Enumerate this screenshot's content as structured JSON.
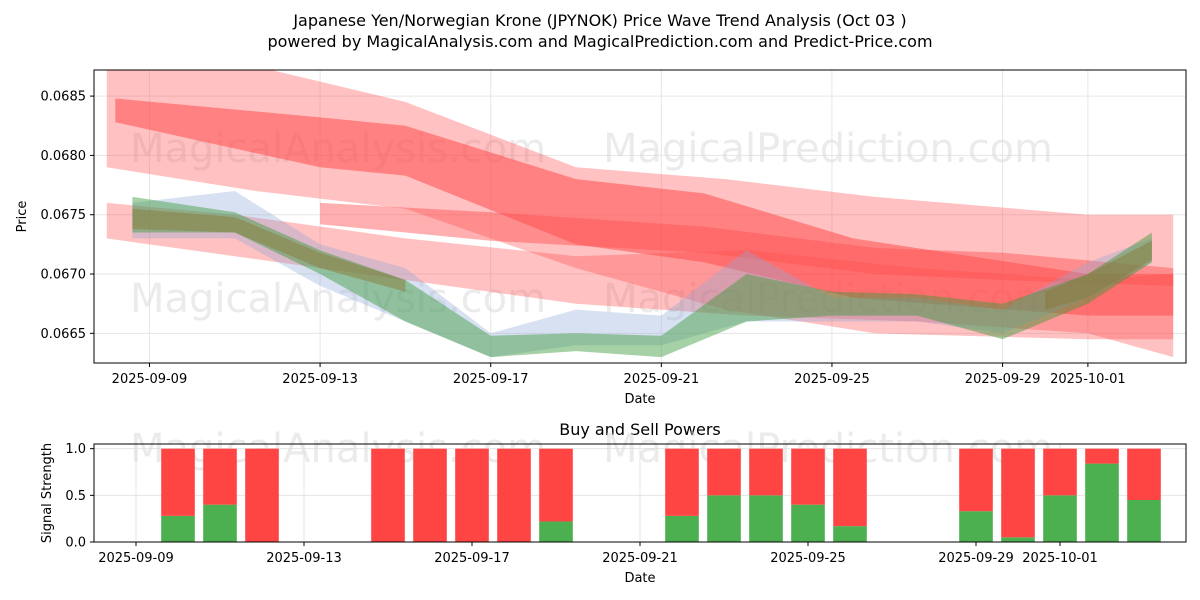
{
  "header": {
    "title": "Japanese Yen/Norwegian Krone (JPYNOK) Price Wave Trend Analysis (Oct 03 )",
    "subtitle": "powered by MagicalAnalysis.com and MagicalPrediction.com and Predict-Price.com"
  },
  "watermarks": [
    "MagicalAnalysis.com",
    "MagicalPrediction.com"
  ],
  "colors": {
    "red_band": "#ff4d4d",
    "green_band": "#3a9a3a",
    "blue_band": "#8fa8d8",
    "buy": "#4caf50",
    "sell": "#ff4444",
    "grid": "#e6e6e6"
  },
  "chart_data": [
    {
      "type": "line",
      "title": "",
      "xlabel": "Date",
      "ylabel": "Price",
      "xlim": [
        -1.3,
        24.3
      ],
      "ylim": [
        0.06625,
        0.06872
      ],
      "yticks": [
        0.0665,
        0.067,
        0.0675,
        0.068,
        0.0685
      ],
      "ytick_labels": [
        "0.0665",
        "0.0670",
        "0.0675",
        "0.0680",
        "0.0685"
      ],
      "xticks": [
        0,
        4,
        8,
        12,
        16,
        20,
        22
      ],
      "xtick_labels": [
        "2025-09-09",
        "2025-09-13",
        "2025-09-17",
        "2025-09-21",
        "2025-09-25",
        "2025-09-29",
        "2025-10-01"
      ],
      "grid": true,
      "bands": [
        {
          "name": "red-wide-upper",
          "color": "red",
          "opacity": 0.35,
          "x": [
            -1,
            2.5,
            6,
            10,
            13.5,
            17,
            22,
            24
          ],
          "upper": [
            0.06875,
            0.06875,
            0.06845,
            0.0679,
            0.0678,
            0.06765,
            0.0675,
            0.0675
          ],
          "lower": [
            0.0679,
            0.0677,
            0.06755,
            0.06705,
            0.0667,
            0.0665,
            0.06645,
            0.06645
          ]
        },
        {
          "name": "red-core",
          "color": "red",
          "opacity": 0.55,
          "x": [
            -0.8,
            4,
            6,
            10,
            13,
            16.5,
            22,
            24
          ],
          "upper": [
            0.06848,
            0.06832,
            0.06825,
            0.0678,
            0.06768,
            0.0673,
            0.067,
            0.067
          ],
          "lower": [
            0.06828,
            0.0679,
            0.06783,
            0.06725,
            0.0671,
            0.0668,
            0.06665,
            0.06665
          ]
        },
        {
          "name": "red-wide-lower",
          "color": "red",
          "opacity": 0.35,
          "x": [
            -1,
            2,
            6,
            10,
            14,
            18,
            22,
            24
          ],
          "upper": [
            0.0676,
            0.0675,
            0.0673,
            0.06715,
            0.0672,
            0.06705,
            0.06695,
            0.067
          ],
          "lower": [
            0.0673,
            0.06715,
            0.06695,
            0.06675,
            0.06665,
            0.0666,
            0.0665,
            0.0663
          ]
        },
        {
          "name": "red-core-lower",
          "color": "red",
          "opacity": 0.45,
          "x": [
            4,
            8,
            13,
            17,
            20,
            24
          ],
          "upper": [
            0.0676,
            0.06752,
            0.0674,
            0.06722,
            0.06718,
            0.06705
          ],
          "lower": [
            0.06742,
            0.06728,
            0.06718,
            0.067,
            0.06695,
            0.0669
          ]
        },
        {
          "name": "blue-wave",
          "color": "blue",
          "opacity": 0.35,
          "x": [
            -0.4,
            2,
            4,
            6,
            8,
            10,
            12,
            14,
            16,
            18,
            20,
            22,
            23.5
          ],
          "upper": [
            0.0676,
            0.0677,
            0.06725,
            0.06705,
            0.0665,
            0.0667,
            0.06665,
            0.0672,
            0.0668,
            0.0668,
            0.0667,
            0.0671,
            0.0673
          ],
          "lower": [
            0.0673,
            0.0673,
            0.0669,
            0.0666,
            0.0663,
            0.0664,
            0.0664,
            0.0666,
            0.0666,
            0.0666,
            0.0665,
            0.0668,
            0.0671
          ]
        },
        {
          "name": "green-wave",
          "color": "green",
          "opacity": 0.45,
          "x": [
            -0.4,
            2,
            4,
            6,
            8,
            10,
            12,
            14,
            16,
            18,
            20,
            22,
            23.5
          ],
          "upper": [
            0.06765,
            0.06752,
            0.0672,
            0.06695,
            0.06648,
            0.0665,
            0.06648,
            0.067,
            0.06685,
            0.06683,
            0.06675,
            0.067,
            0.06735
          ],
          "lower": [
            0.06735,
            0.06735,
            0.067,
            0.0666,
            0.0663,
            0.06635,
            0.0663,
            0.0666,
            0.06665,
            0.06665,
            0.06645,
            0.06675,
            0.0671
          ]
        },
        {
          "name": "brown-core",
          "color": "brown",
          "opacity": 0.5,
          "x": [
            -0.4,
            2,
            4,
            6
          ],
          "upper": [
            0.06755,
            0.06748,
            0.06718,
            0.06695
          ],
          "lower": [
            0.06738,
            0.06735,
            0.06705,
            0.06685
          ]
        },
        {
          "name": "brown-end",
          "color": "brown",
          "opacity": 0.5,
          "x": [
            21,
            22,
            23.5
          ],
          "upper": [
            0.06685,
            0.067,
            0.06728
          ],
          "lower": [
            0.0667,
            0.0668,
            0.06712
          ]
        }
      ]
    },
    {
      "type": "bar",
      "title": "Buy and Sell Powers",
      "xlabel": "Date",
      "ylabel": "Signal Strength",
      "xlim": [
        -1,
        25
      ],
      "ylim": [
        0,
        1.05
      ],
      "yticks": [
        0,
        0.5,
        1
      ],
      "ytick_labels": [
        "0.0",
        "0.5",
        "1.0"
      ],
      "xticks": [
        0,
        4,
        8,
        12,
        16,
        20,
        22
      ],
      "xtick_labels": [
        "2025-09-09",
        "2025-09-13",
        "2025-09-17",
        "2025-09-21",
        "2025-09-25",
        "2025-09-29",
        "2025-10-01"
      ],
      "grid": true,
      "x": [
        1,
        2,
        3,
        6,
        7,
        8,
        9,
        10,
        13,
        14,
        15,
        16,
        17,
        20,
        21,
        22,
        23,
        24
      ],
      "series": [
        {
          "name": "Buy",
          "values": [
            0.28,
            0.4,
            0.0,
            0.0,
            0.0,
            0.0,
            0.0,
            0.22,
            0.28,
            0.5,
            0.5,
            0.4,
            0.17,
            0.33,
            0.05,
            0.5,
            0.84,
            0.45
          ]
        },
        {
          "name": "Sell",
          "values": [
            0.72,
            0.6,
            1.0,
            1.0,
            1.0,
            1.0,
            1.0,
            0.78,
            0.72,
            0.5,
            0.5,
            0.6,
            0.83,
            0.67,
            0.95,
            0.5,
            0.16,
            0.55
          ]
        }
      ]
    }
  ]
}
